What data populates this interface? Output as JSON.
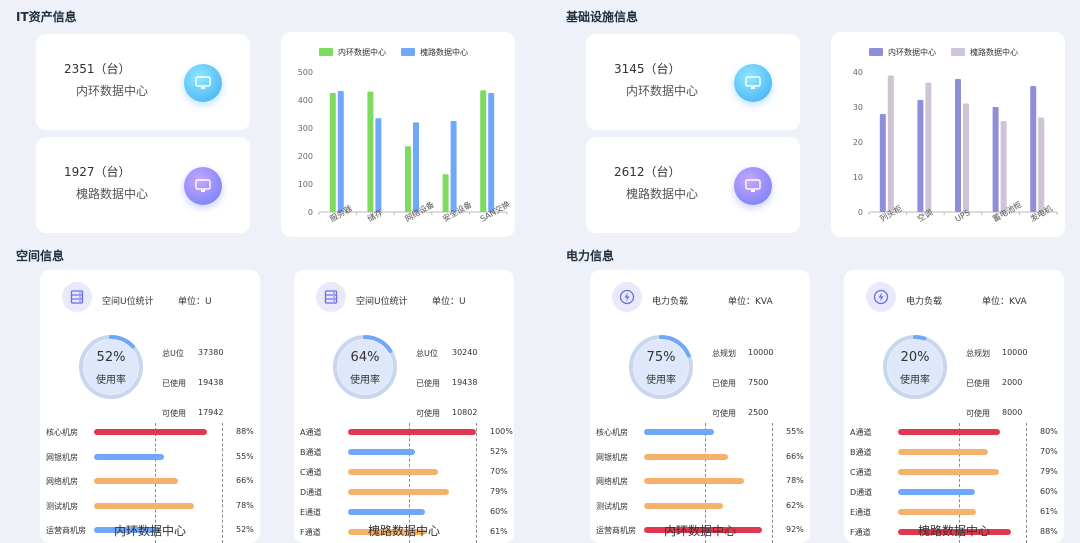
{
  "sections": {
    "it_assets": "IT资产信息",
    "infrastructure": "基础设施信息",
    "space": "空间信息",
    "power": "电力信息"
  },
  "it_stats": [
    {
      "count": "2351（台）",
      "label": "内环数据中心",
      "icon": "monitor-icon"
    },
    {
      "count": "1927（台）",
      "label": "槐路数据中心",
      "icon": "monitor-icon"
    }
  ],
  "infra_stats": [
    {
      "count": "3145（台）",
      "label": "内环数据中心",
      "icon": "monitor-icon"
    },
    {
      "count": "2612（台）",
      "label": "槐路数据中心",
      "icon": "monitor-icon"
    }
  ],
  "chart_data": [
    {
      "type": "bar",
      "categories": [
        "服务器",
        "储存",
        "网络设备",
        "安全设备",
        "SAN交换"
      ],
      "series": [
        {
          "name": "内环数据中心",
          "values": [
            425,
            430,
            235,
            135,
            435
          ],
          "color": "#7ddc5f"
        },
        {
          "name": "槐路数据中心",
          "values": [
            432,
            335,
            320,
            325,
            425
          ],
          "color": "#6fa8f8"
        }
      ],
      "yticks": [
        "0",
        "100",
        "200",
        "300",
        "400",
        "500"
      ],
      "ylim": [
        0,
        500
      ],
      "legend": "top"
    },
    {
      "type": "bar",
      "categories": [
        "列头柜",
        "空调",
        "UPS",
        "蓄电池柜",
        "发电机"
      ],
      "series": [
        {
          "name": "内环数据中心",
          "values": [
            28,
            32,
            38,
            30,
            36
          ],
          "color": "#8f8ed8"
        },
        {
          "name": "槐路数据中心",
          "values": [
            39,
            37,
            31,
            26,
            27
          ],
          "color": "#cfc3d6"
        }
      ],
      "yticks": [
        "0",
        "10",
        "20",
        "30",
        "40"
      ],
      "ylim": [
        0,
        40
      ],
      "legend": "top"
    }
  ],
  "panels": [
    {
      "icon": "server-rack-icon",
      "title": "空间U位统计",
      "unit": "单位：U",
      "percent": "52%",
      "percent_value": 52,
      "usage_label": "使用率",
      "kv": [
        {
          "k": "总U位",
          "v": "37380"
        },
        {
          "k": "已使用",
          "v": "19438"
        },
        {
          "k": "可使用",
          "v": "17942"
        }
      ],
      "rows": [
        {
          "label": "核心机房",
          "pct": "88%",
          "value": 88,
          "color": "#e0384f"
        },
        {
          "label": "网银机房",
          "pct": "55%",
          "value": 55,
          "color": "#6fa8f8"
        },
        {
          "label": "网络机房",
          "pct": "66%",
          "value": 66,
          "color": "#f6b26b"
        },
        {
          "label": "测试机房",
          "pct": "78%",
          "value": 78,
          "color": "#f6b26b"
        },
        {
          "label": "运营商机房",
          "pct": "52%",
          "value": 52,
          "color": "#6fa8f8"
        }
      ],
      "footer": "内环数据中心"
    },
    {
      "icon": "server-rack-icon",
      "title": "空间U位统计",
      "unit": "单位：U",
      "percent": "64%",
      "percent_value": 64,
      "usage_label": "使用率",
      "kv": [
        {
          "k": "总U位",
          "v": "30240"
        },
        {
          "k": "已使用",
          "v": "19438"
        },
        {
          "k": "可使用",
          "v": "10802"
        }
      ],
      "rows": [
        {
          "label": "A通道",
          "pct": "100%",
          "value": 100,
          "color": "#e0384f"
        },
        {
          "label": "B通道",
          "pct": "52%",
          "value": 52,
          "color": "#6fa8f8"
        },
        {
          "label": "C通道",
          "pct": "70%",
          "value": 70,
          "color": "#f6b26b"
        },
        {
          "label": "D通道",
          "pct": "79%",
          "value": 79,
          "color": "#f6b26b"
        },
        {
          "label": "E通道",
          "pct": "60%",
          "value": 60,
          "color": "#6fa8f8"
        },
        {
          "label": "F通道",
          "pct": "61%",
          "value": 61,
          "color": "#f6b26b"
        }
      ],
      "footer": "槐路数据中心"
    },
    {
      "icon": "lightning-icon",
      "title": "电力负载",
      "unit": "单位：KVA",
      "percent": "75%",
      "percent_value": 75,
      "usage_label": "使用率",
      "kv": [
        {
          "k": "总规划",
          "v": "10000"
        },
        {
          "k": "已使用",
          "v": "7500"
        },
        {
          "k": "可使用",
          "v": "2500"
        }
      ],
      "rows": [
        {
          "label": "核心机房",
          "pct": "55%",
          "value": 55,
          "color": "#6fa8f8"
        },
        {
          "label": "网银机房",
          "pct": "66%",
          "value": 66,
          "color": "#f6b26b"
        },
        {
          "label": "网络机房",
          "pct": "78%",
          "value": 78,
          "color": "#f6b26b"
        },
        {
          "label": "测试机房",
          "pct": "62%",
          "value": 62,
          "color": "#f6b26b"
        },
        {
          "label": "运营商机房",
          "pct": "92%",
          "value": 92,
          "color": "#e0384f"
        }
      ],
      "footer": "内环数据中心"
    },
    {
      "icon": "lightning-icon",
      "title": "电力负载",
      "unit": "单位：KVA",
      "percent": "20%",
      "percent_value": 20,
      "usage_label": "使用率",
      "kv": [
        {
          "k": "总规划",
          "v": "10000"
        },
        {
          "k": "已使用",
          "v": "2000"
        },
        {
          "k": "可使用",
          "v": "8000"
        }
      ],
      "rows": [
        {
          "label": "A通道",
          "pct": "80%",
          "value": 80,
          "color": "#e0384f"
        },
        {
          "label": "B通道",
          "pct": "70%",
          "value": 70,
          "color": "#f6b26b"
        },
        {
          "label": "C通道",
          "pct": "79%",
          "value": 79,
          "color": "#f6b26b"
        },
        {
          "label": "D通道",
          "pct": "60%",
          "value": 60,
          "color": "#6fa8f8"
        },
        {
          "label": "E通道",
          "pct": "61%",
          "value": 61,
          "color": "#f6b26b"
        },
        {
          "label": "F通道",
          "pct": "88%",
          "value": 88,
          "color": "#e0384f"
        }
      ],
      "footer": "槐路数据中心"
    }
  ]
}
